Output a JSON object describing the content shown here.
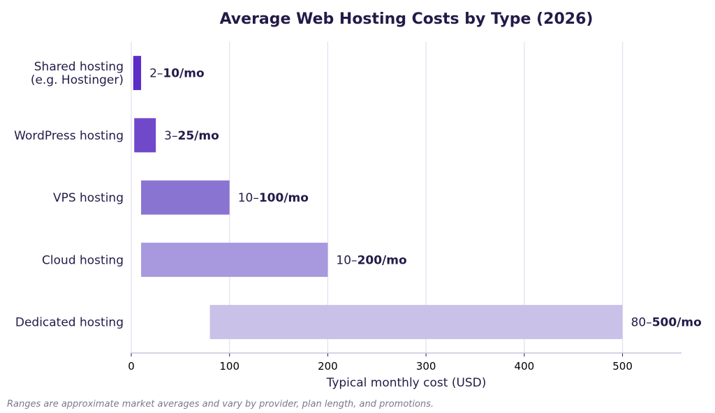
{
  "colors": {
    "text": "#241A48",
    "grid": "#E3E0F0",
    "axis": "#C9C4E0",
    "footnote": "#7A7890"
  },
  "chart_data": {
    "type": "bar",
    "orientation": "horizontal",
    "title": "Average Web Hosting Costs by Type (2026)",
    "xlabel": "Typical monthly cost (USD)",
    "ylabel": "",
    "xlim": [
      0,
      560
    ],
    "xticks": [
      0,
      100,
      200,
      300,
      400,
      500
    ],
    "grid": "vertical",
    "bar_style": "floating range",
    "categories": [
      {
        "label_lines": [
          "Shared hosting",
          "(e.g. Hostinger)"
        ],
        "low": 2,
        "high": 10,
        "label_low": "2–",
        "label_high": "10/mo",
        "color": "#5B2DC6"
      },
      {
        "label_lines": [
          "WordPress hosting"
        ],
        "low": 3,
        "high": 25,
        "label_low": "3–",
        "label_high": "25/mo",
        "color": "#7049CA"
      },
      {
        "label_lines": [
          "VPS hosting"
        ],
        "low": 10,
        "high": 100,
        "label_low": "10–",
        "label_high": "100/mo",
        "color": "#8A74D2"
      },
      {
        "label_lines": [
          "Cloud hosting"
        ],
        "low": 10,
        "high": 200,
        "label_low": "10–",
        "label_high": "200/mo",
        "color": "#A898DE"
      },
      {
        "label_lines": [
          "Dedicated hosting"
        ],
        "low": 80,
        "high": 500,
        "label_low": "80–",
        "label_high": "500/mo",
        "color": "#C9C1E8"
      }
    ]
  },
  "footnote": "Ranges are approximate market averages and vary by provider, plan length, and promotions."
}
